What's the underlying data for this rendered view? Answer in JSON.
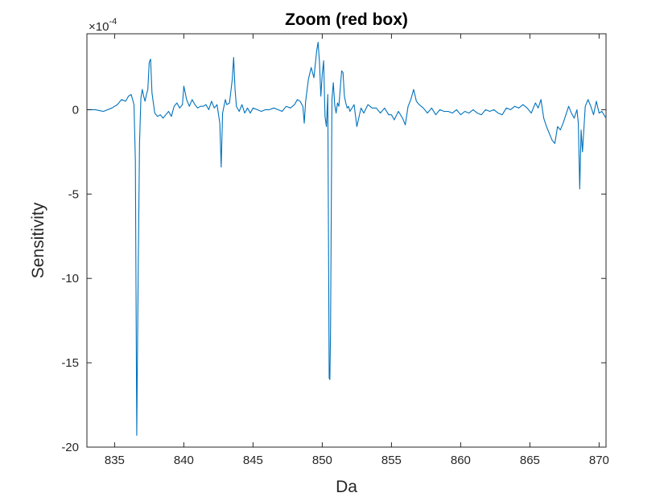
{
  "chart_data": {
    "type": "line",
    "title": "Zoom (red box)",
    "xlabel": "Da",
    "ylabel": "Sensitivity",
    "exponent_label": "×10",
    "exponent_power": "-4",
    "xlim": [
      833,
      870.5
    ],
    "ylim": [
      -20,
      4.5
    ],
    "xticks": [
      835,
      840,
      845,
      850,
      855,
      860,
      865,
      870
    ],
    "yticks": [
      0,
      -5,
      -10,
      -15,
      -20
    ],
    "grid": false,
    "line_color": "#0072BD",
    "series": [
      {
        "x": [
          833.0,
          833.6,
          834.2,
          834.8,
          835.2,
          835.5,
          835.8,
          836.0,
          836.2,
          836.4,
          836.5,
          836.6,
          836.7,
          836.8,
          836.9,
          837.0,
          837.1,
          837.2,
          837.3,
          837.4,
          837.5,
          837.6,
          837.7,
          837.9,
          838.1,
          838.3,
          838.5,
          838.7,
          838.9,
          839.1,
          839.3,
          839.5,
          839.7,
          839.9,
          840.0,
          840.2,
          840.4,
          840.6,
          840.8,
          841.0,
          841.2,
          841.4,
          841.6,
          841.8,
          842.0,
          842.2,
          842.4,
          842.6,
          842.7,
          842.8,
          842.9,
          843.0,
          843.1,
          843.3,
          843.5,
          843.6,
          843.7,
          843.8,
          844.0,
          844.2,
          844.4,
          844.6,
          844.8,
          845.0,
          845.3,
          845.6,
          845.9,
          846.2,
          846.5,
          846.8,
          847.1,
          847.4,
          847.7,
          848.0,
          848.2,
          848.4,
          848.6,
          848.7,
          848.8,
          849.0,
          849.2,
          849.4,
          849.6,
          849.7,
          849.8,
          849.9,
          850.0,
          850.1,
          850.2,
          850.3,
          850.4,
          850.5,
          850.55,
          850.6,
          850.7,
          850.8,
          850.9,
          851.0,
          851.1,
          851.2,
          851.4,
          851.5,
          851.6,
          851.7,
          851.8,
          851.9,
          852.0,
          852.3,
          852.5,
          852.8,
          853.0,
          853.3,
          853.6,
          853.9,
          854.2,
          854.5,
          854.8,
          855.0,
          855.2,
          855.5,
          855.8,
          856.0,
          856.2,
          856.4,
          856.6,
          856.8,
          857.0,
          857.3,
          857.6,
          857.9,
          858.2,
          858.5,
          858.8,
          859.1,
          859.4,
          859.7,
          860.0,
          860.3,
          860.6,
          860.9,
          861.2,
          861.5,
          861.8,
          862.1,
          862.4,
          862.7,
          863.0,
          863.3,
          863.6,
          863.9,
          864.2,
          864.5,
          864.8,
          865.1,
          865.4,
          865.6,
          865.8,
          866.0,
          866.2,
          866.4,
          866.6,
          866.8,
          867.0,
          867.2,
          867.4,
          867.6,
          867.8,
          868.0,
          868.2,
          868.4,
          868.5,
          868.6,
          868.7,
          868.8,
          869.0,
          869.2,
          869.4,
          869.6,
          869.8,
          870.0,
          870.2,
          870.5
        ],
        "y": [
          0.0,
          0.0,
          -0.1,
          0.1,
          0.3,
          0.6,
          0.5,
          0.8,
          0.9,
          0.3,
          -3.0,
          -19.3,
          -10.0,
          -2.0,
          0.7,
          1.2,
          0.8,
          0.5,
          0.9,
          1.2,
          2.8,
          3.0,
          1.0,
          -0.2,
          -0.4,
          -0.3,
          -0.5,
          -0.3,
          -0.1,
          -0.4,
          0.2,
          0.4,
          0.1,
          0.3,
          1.4,
          0.6,
          0.2,
          0.6,
          0.3,
          0.1,
          0.2,
          0.2,
          0.3,
          0.0,
          0.5,
          0.1,
          0.3,
          -0.8,
          -3.4,
          -0.2,
          0.2,
          0.6,
          0.3,
          0.4,
          1.8,
          3.1,
          1.2,
          0.2,
          -0.1,
          0.3,
          -0.2,
          0.1,
          -0.2,
          0.1,
          0.0,
          -0.1,
          0.0,
          0.0,
          0.1,
          0.0,
          -0.1,
          0.2,
          0.1,
          0.3,
          0.6,
          0.5,
          0.2,
          -0.8,
          0.5,
          1.8,
          2.5,
          1.9,
          3.5,
          4.0,
          2.8,
          0.8,
          2.1,
          2.9,
          -0.4,
          -1.0,
          0.9,
          -15.9,
          -16.0,
          -13.0,
          0.6,
          1.6,
          0.3,
          -0.2,
          0.4,
          0.2,
          2.3,
          2.2,
          0.8,
          0.4,
          0.1,
          0.2,
          -0.1,
          0.3,
          -1.0,
          0.1,
          -0.2,
          0.3,
          0.1,
          0.1,
          -0.2,
          0.1,
          -0.3,
          -0.3,
          -0.6,
          -0.1,
          -0.5,
          -0.9,
          0.2,
          0.6,
          1.2,
          0.5,
          0.3,
          0.1,
          -0.2,
          0.1,
          -0.3,
          0.0,
          -0.1,
          -0.1,
          -0.2,
          0.0,
          -0.3,
          -0.1,
          -0.2,
          0.0,
          -0.2,
          -0.3,
          0.0,
          -0.1,
          0.0,
          -0.2,
          -0.3,
          0.1,
          0.0,
          0.2,
          0.1,
          0.3,
          0.1,
          -0.2,
          0.4,
          0.1,
          0.6,
          -0.5,
          -1.0,
          -1.4,
          -1.8,
          -2.0,
          -1.0,
          -1.2,
          -0.8,
          -0.3,
          0.2,
          -0.2,
          -0.5,
          0.0,
          -0.8,
          -4.7,
          -1.2,
          -2.5,
          0.2,
          0.6,
          0.2,
          -0.3,
          0.5,
          -0.2,
          -0.1,
          -0.5
        ]
      }
    ]
  }
}
